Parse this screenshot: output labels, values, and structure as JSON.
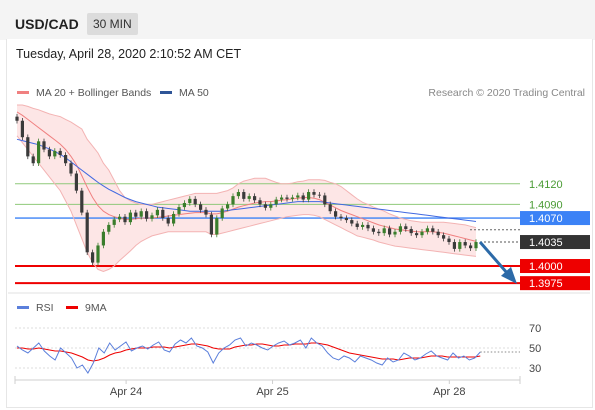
{
  "header": {
    "symbol": "USD/CAD",
    "interval": "30 MIN"
  },
  "timestamp": "Tuesday, April 28, 2020 2:10:52 AM CET",
  "colors": {
    "bollinger": "#f08080",
    "bollinger_fill": "#fde3e3",
    "ma50": "#4169e1",
    "green_level": "#8fc97a",
    "blue_level": "#3b82f6",
    "red_level": "#ee0000",
    "current_label": "#333333",
    "rsi": "#5b7fdb",
    "rsi_ma": "#ee0000",
    "candle_up": "#3a7d2c",
    "candle_down": "#3a3a3a",
    "arrow": "#2c6aa8"
  },
  "chart_data": [
    {
      "type": "candlestick",
      "legend": [
        {
          "name": "MA 20 + Bollinger Bands",
          "color": "#f08080"
        },
        {
          "name": "MA 50",
          "color": "#4169e1"
        }
      ],
      "credit": "Research © 2020 Trading Central",
      "ylim": [
        1.3965,
        1.4235
      ],
      "x_range": [
        0,
        100
      ],
      "x_ticks": [
        {
          "x": 22,
          "label": "Apr 24"
        },
        {
          "x": 51,
          "label": "Apr 25"
        },
        {
          "x": 86,
          "label": "Apr 28"
        }
      ],
      "levels": [
        {
          "value": 1.412,
          "label": "1.4120",
          "style": "green"
        },
        {
          "value": 1.409,
          "label": "1.4090",
          "style": "green"
        },
        {
          "value": 1.407,
          "label": "1.4070",
          "style": "blue-box"
        },
        {
          "value": 1.4035,
          "label": "1.4035",
          "style": "current"
        },
        {
          "value": 1.4,
          "label": "1.4000",
          "style": "red-box"
        },
        {
          "value": 1.3975,
          "label": "1.3975",
          "style": "red-box"
        }
      ],
      "close": [
        1.4212,
        1.4188,
        1.416,
        1.415,
        1.4182,
        1.417,
        1.416,
        1.4168,
        1.4162,
        1.415,
        1.4135,
        1.411,
        1.4078,
        1.402,
        1.4005,
        1.403,
        1.405,
        1.406,
        1.4068,
        1.4072,
        1.4064,
        1.4078,
        1.4072,
        1.408,
        1.4069,
        1.4074,
        1.4082,
        1.407,
        1.4062,
        1.4076,
        1.4086,
        1.4092,
        1.4098,
        1.409,
        1.4082,
        1.4075,
        1.4046,
        1.407,
        1.4084,
        1.409,
        1.4102,
        1.4108,
        1.4098,
        1.4102,
        1.4096,
        1.409,
        1.4085,
        1.409,
        1.4097,
        1.41,
        1.4098,
        1.41,
        1.4103,
        1.4097,
        1.4108,
        1.4104,
        1.4103,
        1.409,
        1.408,
        1.4072,
        1.407,
        1.4067,
        1.4062,
        1.4057,
        1.406,
        1.4055,
        1.405,
        1.4048,
        1.4055,
        1.4046,
        1.405,
        1.4058,
        1.4054,
        1.4048,
        1.4045,
        1.405,
        1.4055,
        1.405,
        1.4045,
        1.404,
        1.4035,
        1.4025,
        1.4035,
        1.403,
        1.4026,
        1.4035
      ],
      "ma20": [
        1.4225,
        1.422,
        1.4214,
        1.4208,
        1.4202,
        1.4196,
        1.419,
        1.4184,
        1.4178,
        1.417,
        1.416,
        1.4148,
        1.4132,
        1.4115,
        1.41,
        1.4088,
        1.408,
        1.4075,
        1.4072,
        1.407,
        1.4068,
        1.4068,
        1.4069,
        1.407,
        1.407,
        1.407,
        1.4071,
        1.4072,
        1.4073,
        1.4074,
        1.4075,
        1.4076,
        1.4077,
        1.4078,
        1.4078,
        1.4078,
        1.4076,
        1.4076,
        1.4078,
        1.408,
        1.4083,
        1.4086,
        1.4088,
        1.409,
        1.4092,
        1.4093,
        1.4094,
        1.4094,
        1.4095,
        1.4096,
        1.4097,
        1.4098,
        1.4099,
        1.41,
        1.41,
        1.4099,
        1.4097,
        1.4093,
        1.4089,
        1.4085,
        1.4081,
        1.4078,
        1.4075,
        1.4072,
        1.4069,
        1.4066,
        1.4063,
        1.406,
        1.4058,
        1.4056,
        1.4054,
        1.4053,
        1.4052,
        1.4051,
        1.405,
        1.405,
        1.405,
        1.405,
        1.4049,
        1.4048,
        1.4046,
        1.4044,
        1.4042,
        1.404,
        1.4038,
        1.4036
      ],
      "bb_upper": [
        1.4235,
        1.4235,
        1.4233,
        1.423,
        1.4228,
        1.4225,
        1.4222,
        1.422,
        1.4218,
        1.4214,
        1.421,
        1.4205,
        1.42,
        1.4185,
        1.4175,
        1.4165,
        1.415,
        1.414,
        1.4125,
        1.411,
        1.41,
        1.4095,
        1.4092,
        1.409,
        1.409,
        1.409,
        1.4092,
        1.4094,
        1.4096,
        1.4098,
        1.41,
        1.4102,
        1.4104,
        1.4106,
        1.4106,
        1.4106,
        1.4106,
        1.4106,
        1.4108,
        1.411,
        1.4114,
        1.412,
        1.4124,
        1.4126,
        1.4128,
        1.4128,
        1.4128,
        1.4125,
        1.4122,
        1.412,
        1.412,
        1.4121,
        1.4123,
        1.4124,
        1.4126,
        1.4126,
        1.4126,
        1.4125,
        1.4122,
        1.412,
        1.4116,
        1.411,
        1.4104,
        1.4098,
        1.4093,
        1.409,
        1.4086,
        1.4083,
        1.408,
        1.4076,
        1.4073,
        1.407,
        1.4068,
        1.4066,
        1.4065,
        1.4064,
        1.4064,
        1.4064,
        1.4064,
        1.4064,
        1.4063,
        1.4062,
        1.4061,
        1.406,
        1.4058,
        1.4056
      ],
      "bb_lower": [
        1.419,
        1.418,
        1.417,
        1.416,
        1.415,
        1.414,
        1.413,
        1.412,
        1.411,
        1.4095,
        1.408,
        1.406,
        1.404,
        1.402,
        1.4005,
        1.3995,
        1.3992,
        1.3995,
        1.4,
        1.4008,
        1.4015,
        1.4022,
        1.403,
        1.4036,
        1.404,
        1.4044,
        1.4046,
        1.4048,
        1.405,
        1.405,
        1.405,
        1.405,
        1.405,
        1.405,
        1.405,
        1.405,
        1.4046,
        1.4046,
        1.4048,
        1.405,
        1.4052,
        1.4054,
        1.4056,
        1.4058,
        1.406,
        1.4062,
        1.4064,
        1.4066,
        1.4068,
        1.407,
        1.4072,
        1.4073,
        1.4074,
        1.4075,
        1.4075,
        1.4074,
        1.4072,
        1.4068,
        1.4064,
        1.406,
        1.4056,
        1.4052,
        1.4048,
        1.4044,
        1.4042,
        1.404,
        1.4038,
        1.4035,
        1.4033,
        1.4031,
        1.4029,
        1.4028,
        1.4027,
        1.4026,
        1.4025,
        1.4024,
        1.4023,
        1.4022,
        1.4021,
        1.402,
        1.4019,
        1.4018,
        1.4017,
        1.4016,
        1.4015,
        1.4014
      ],
      "ma50": [
        1.4185,
        1.4183,
        1.4181,
        1.4179,
        1.4177,
        1.4174,
        1.4171,
        1.4167,
        1.4163,
        1.4158,
        1.4152,
        1.4146,
        1.414,
        1.4134,
        1.4128,
        1.4122,
        1.4117,
        1.4112,
        1.4108,
        1.4104,
        1.41,
        1.4097,
        1.4094,
        1.4092,
        1.409,
        1.4088,
        1.4086,
        1.4085,
        1.4084,
        1.4083,
        1.4082,
        1.4081,
        1.408,
        1.408,
        1.408,
        1.408,
        1.408,
        1.408,
        1.408,
        1.4081,
        1.4082,
        1.4083,
        1.4084,
        1.4085,
        1.4086,
        1.4087,
        1.4088,
        1.4089,
        1.409,
        1.4091,
        1.4092,
        1.4093,
        1.4094,
        1.4094,
        1.4094,
        1.4094,
        1.4094,
        1.4093,
        1.4092,
        1.4091,
        1.409,
        1.4089,
        1.4088,
        1.4087,
        1.4086,
        1.4085,
        1.4084,
        1.4083,
        1.4082,
        1.4081,
        1.408,
        1.4079,
        1.4078,
        1.4077,
        1.4076,
        1.4075,
        1.4074,
        1.4073,
        1.4072,
        1.4071,
        1.407,
        1.4069,
        1.4068,
        1.4067,
        1.4066,
        1.4065
      ]
    },
    {
      "type": "line",
      "legend": [
        {
          "name": "RSI",
          "color": "#5b7fdb"
        },
        {
          "name": "9MA",
          "color": "#ee0000"
        }
      ],
      "ylim": [
        20,
        80
      ],
      "y_ticks": [
        70,
        50,
        30
      ],
      "rsi": [
        52,
        48,
        45,
        50,
        55,
        47,
        42,
        38,
        50,
        45,
        40,
        30,
        33,
        25,
        35,
        50,
        45,
        55,
        48,
        52,
        56,
        47,
        50,
        52,
        49,
        53,
        56,
        48,
        46,
        54,
        58,
        55,
        60,
        52,
        50,
        46,
        35,
        45,
        50,
        53,
        58,
        60,
        52,
        55,
        53,
        50,
        48,
        52,
        55,
        57,
        53,
        55,
        58,
        50,
        60,
        55,
        52,
        45,
        40,
        38,
        42,
        40,
        36,
        42,
        40,
        38,
        35,
        33,
        40,
        36,
        38,
        45,
        42,
        38,
        40,
        44,
        47,
        42,
        40,
        38,
        45,
        40,
        42,
        38,
        40,
        46
      ],
      "rsi_ma": [
        50,
        50,
        49,
        49,
        50,
        49,
        48,
        47,
        47,
        46,
        45,
        43,
        41,
        38,
        37,
        38,
        40,
        43,
        45,
        46,
        48,
        49,
        50,
        50,
        50,
        51,
        51,
        51,
        50,
        51,
        52,
        53,
        54,
        54,
        53,
        52,
        50,
        49,
        49,
        49,
        51,
        52,
        53,
        53,
        54,
        54,
        53,
        52,
        52,
        53,
        53,
        54,
        54,
        54,
        55,
        55,
        54,
        53,
        51,
        49,
        47,
        45,
        44,
        43,
        42,
        41,
        40,
        39,
        39,
        39,
        38,
        39,
        40,
        40,
        40,
        41,
        42,
        42,
        42,
        41,
        41,
        41,
        41,
        41,
        41,
        42
      ]
    }
  ]
}
